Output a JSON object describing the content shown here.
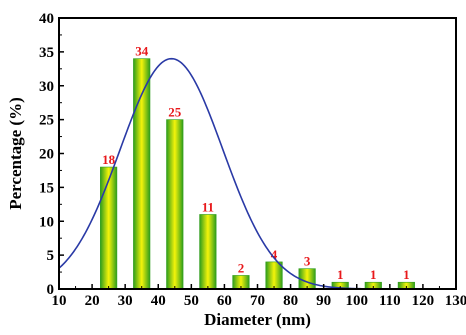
{
  "chart_data": {
    "type": "bar",
    "xlabel": "Diameter (nm)",
    "ylabel": "Percentage (%)",
    "xlim": [
      10,
      130
    ],
    "ylim": [
      0,
      40
    ],
    "xticks": [
      10,
      20,
      30,
      40,
      50,
      60,
      70,
      80,
      90,
      100,
      110,
      120,
      130
    ],
    "yticks": [
      0,
      5,
      10,
      15,
      20,
      25,
      30,
      35,
      40
    ],
    "bar_width": 5,
    "bars": [
      {
        "x": 25,
        "value": 18,
        "label": "18"
      },
      {
        "x": 35,
        "value": 34,
        "label": "34"
      },
      {
        "x": 45,
        "value": 25,
        "label": "25"
      },
      {
        "x": 55,
        "value": 11,
        "label": "11"
      },
      {
        "x": 65,
        "value": 2,
        "label": "2"
      },
      {
        "x": 75,
        "value": 4,
        "label": "4"
      },
      {
        "x": 85,
        "value": 3,
        "label": "3"
      },
      {
        "x": 95,
        "value": 1,
        "label": "1"
      },
      {
        "x": 105,
        "value": 1,
        "label": "1"
      },
      {
        "x": 115,
        "value": 1,
        "label": "1"
      }
    ],
    "fit_curve": {
      "type": "gaussian",
      "peak": 34,
      "center": 44,
      "sigma": 15.5
    },
    "grid": false,
    "legend": "none",
    "colors": {
      "bar_center": "#f4f40a",
      "bar_edge": "#2f9d1c",
      "label": "#e8181b",
      "curve": "#2a3aa6",
      "axis": "#000000"
    }
  }
}
